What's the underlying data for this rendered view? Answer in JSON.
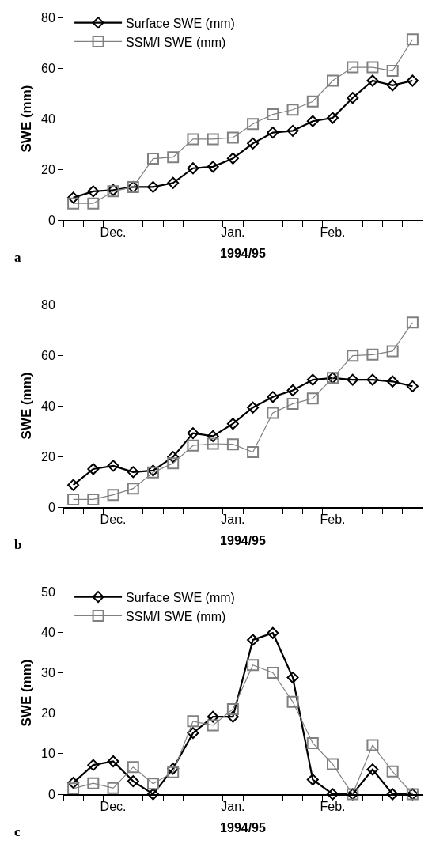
{
  "chart_data": [
    {
      "type": "line",
      "annotations": [
        "a"
      ],
      "xlabel": "1994/95",
      "ylabel": "SWE (mm)",
      "legend": "top left",
      "grid": false,
      "line_style": "solid",
      "categories": [
        null,
        null,
        "Dec.",
        null,
        null,
        null,
        null,
        null,
        "Jan.",
        null,
        null,
        null,
        null,
        "Feb.",
        null,
        null,
        null,
        null
      ],
      "ylim": [
        0,
        80
      ],
      "yticks": [
        0,
        20,
        40,
        60,
        80
      ],
      "series": [
        {
          "name": "Surface SWE (mm)",
          "color": "#000000",
          "marker": "diamond",
          "values": [
            8.8,
            11.3,
            11.8,
            13,
            13,
            14.6,
            20.4,
            21,
            24.3,
            30.2,
            34.5,
            35.2,
            39,
            40.3,
            48.2,
            55,
            53.2,
            55
          ]
        },
        {
          "name": "SSM/I SWE (mm)",
          "color": "#808080",
          "marker": "square",
          "values": [
            6.5,
            6.5,
            11.3,
            13,
            24.2,
            24.8,
            31.9,
            31.9,
            32.5,
            37.9,
            41.7,
            43.5,
            46.8,
            55,
            60.3,
            60.3,
            58.9,
            71.3
          ]
        }
      ]
    },
    {
      "type": "line",
      "annotations": [
        "b"
      ],
      "xlabel": "1994/95",
      "ylabel": "SWE (mm)",
      "legend": false,
      "grid": false,
      "line_style": "solid",
      "categories": [
        null,
        null,
        "Dec.",
        null,
        null,
        null,
        null,
        null,
        "Jan.",
        null,
        null,
        null,
        null,
        "Feb.",
        null,
        null,
        null,
        null
      ],
      "ylim": [
        0,
        80
      ],
      "yticks": [
        0,
        20,
        40,
        60,
        80
      ],
      "series": [
        {
          "color": "#000000",
          "marker": "diamond",
          "values": [
            8.7,
            15,
            16.3,
            13.8,
            14.4,
            19.8,
            29.2,
            28,
            32.9,
            39.3,
            43.5,
            46.1,
            50.3,
            51,
            50.3,
            50.3,
            49.6,
            47.7
          ]
        },
        {
          "color": "#808080",
          "marker": "square",
          "values": [
            3,
            3,
            4.8,
            7.3,
            13.7,
            17.3,
            24.3,
            25,
            24.8,
            21.7,
            37.2,
            40.8,
            42.9,
            51,
            59.8,
            60.2,
            61.6,
            72.9
          ]
        }
      ]
    },
    {
      "type": "line",
      "annotations": [
        "c"
      ],
      "xlabel": "1994/95",
      "ylabel": "SWE (mm)",
      "legend": "top left",
      "grid": false,
      "line_style": "solid",
      "categories": [
        null,
        null,
        "Dec.",
        null,
        null,
        null,
        null,
        null,
        "Jan.",
        null,
        null,
        null,
        null,
        "Feb.",
        null,
        null,
        null,
        null
      ],
      "ylim": [
        0,
        50
      ],
      "yticks": [
        0,
        10,
        20,
        30,
        40,
        50
      ],
      "series": [
        {
          "name": "Surface SWE (mm)",
          "color": "#000000",
          "marker": "diamond",
          "values": [
            2.8,
            7.2,
            8.1,
            3.2,
            0,
            6.3,
            15.1,
            19.1,
            19.1,
            38.1,
            39.8,
            28.8,
            3.6,
            0,
            0,
            6.1,
            0,
            0
          ]
        },
        {
          "name": "SSM/I SWE (mm)",
          "color": "#808080",
          "marker": "square",
          "values": [
            1.4,
            2.7,
            1.5,
            6.7,
            2.6,
            5.4,
            18,
            17,
            21,
            31.9,
            30,
            22.8,
            12.6,
            7.4,
            0,
            12.1,
            5.6,
            0
          ]
        }
      ]
    }
  ]
}
